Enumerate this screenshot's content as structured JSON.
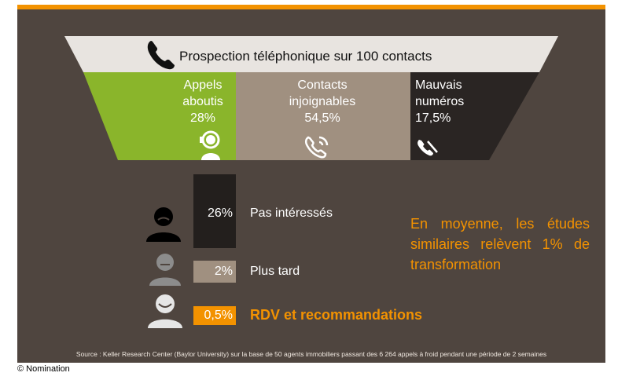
{
  "funnel": {
    "title": "Prospection téléphonique sur 100 contacts",
    "icon": "phone-icon",
    "segments": [
      {
        "label_line1": "Appels",
        "label_line2": "aboutis",
        "value": "28%",
        "color": "#8ab52b",
        "icon": "operator-icon"
      },
      {
        "label_line1": "Contacts",
        "label_line2": "injoignables",
        "value": "54,5%",
        "color": "#a09080",
        "icon": "ringing-phone-icon"
      },
      {
        "label_line1": "Mauvais",
        "label_line2": "numéros",
        "value": "17,5%",
        "color": "#2a2523",
        "icon": "broken-phone-icon"
      }
    ]
  },
  "outcomes": [
    {
      "value": "26%",
      "label": "Pas intéressés",
      "color": "#231f1d",
      "face_color": "#000000",
      "face": "sad-face-icon"
    },
    {
      "value": "2%",
      "label": "Plus tard",
      "color": "#a09080",
      "face_color": "#8c8c8c",
      "face": "neutral-face-icon"
    },
    {
      "value": "0,5%",
      "label": "RDV et recommandations",
      "color": "#f39200",
      "face_color": "#e6e6e6",
      "face": "happy-face-icon"
    }
  ],
  "note": "En moyenne, les études similaires relèvent 1% de transformation",
  "source": "Source : Keller Research Center (Baylor University) sur la base de 50 agents immobiliers passant des 6 264 appels à froid pendant une période de 2 semaines",
  "copyright": "© Nomination"
}
